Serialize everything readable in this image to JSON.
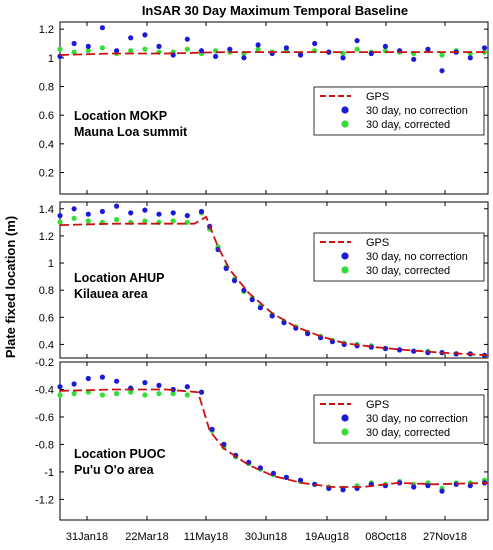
{
  "title": "InSAR 30 Day Maximum Temporal Baseline",
  "ylabel": "Plate fixed location (m)",
  "x_tick_labels": [
    "31Jan18",
    "22Mar18",
    "11May18",
    "30Jun18",
    "19Aug18",
    "08Oct18",
    "27Nov18"
  ],
  "legend": {
    "gps": "GPS",
    "no_correction": "30 day, no correction",
    "corrected": "30 day, corrected"
  },
  "colors": {
    "gps": "#cc1111",
    "no_correction": "#1a1ad8",
    "corrected": "#33dd33"
  },
  "panels": [
    {
      "location": "Location MOKP",
      "area": "Mauna Loa summit",
      "y_ticks": [
        "1.2",
        "1",
        "0.8",
        "0.6",
        "0.4",
        "0.2"
      ]
    },
    {
      "location": "Location AHUP",
      "area": "Kilauea area",
      "y_ticks": [
        "1.4",
        "1.2",
        "1",
        "0.8",
        "0.6",
        "0.4"
      ]
    },
    {
      "location": "Location PUOC",
      "area": "Pu'u O'o area",
      "y_ticks": [
        "-0.2",
        "-0.4",
        "-0.6",
        "-0.8",
        "-1",
        "-1.2"
      ]
    }
  ],
  "chart_data": [
    {
      "type": "scatter",
      "title": "InSAR 30 Day Maximum Temporal Baseline",
      "xlabel": "",
      "ylabel": "Plate fixed location (m)",
      "x_range": [
        "2018-01-01",
        "2018-12-30"
      ],
      "ylim": [
        0.05,
        1.25
      ],
      "legend_position": "right",
      "grid": false,
      "series": [
        {
          "name": "GPS",
          "style": "dashed-line",
          "x": [
            "2018-01-01",
            "2018-02-15",
            "2018-04-01",
            "2018-05-20",
            "2018-07-10",
            "2018-08-30",
            "2018-10-20",
            "2018-12-30"
          ],
          "y": [
            1.02,
            1.03,
            1.03,
            1.04,
            1.04,
            1.04,
            1.04,
            1.04
          ]
        },
        {
          "name": "30 day, no correction",
          "x": [
            "2018-01-01",
            "2018-01-13",
            "2018-01-25",
            "2018-02-06",
            "2018-02-18",
            "2018-03-02",
            "2018-03-14",
            "2018-03-26",
            "2018-04-07",
            "2018-04-19",
            "2018-05-01",
            "2018-05-13",
            "2018-05-25",
            "2018-06-06",
            "2018-06-18",
            "2018-06-30",
            "2018-07-12",
            "2018-07-24",
            "2018-08-05",
            "2018-08-17",
            "2018-08-29",
            "2018-09-10",
            "2018-09-22",
            "2018-10-04",
            "2018-10-16",
            "2018-10-28",
            "2018-11-09",
            "2018-11-21",
            "2018-12-03",
            "2018-12-15",
            "2018-12-27"
          ],
          "y": [
            1.01,
            1.1,
            1.08,
            1.21,
            1.05,
            1.14,
            1.16,
            1.08,
            1.02,
            1.13,
            1.05,
            1.01,
            1.06,
            1.0,
            1.09,
            1.03,
            1.07,
            1.02,
            1.1,
            1.04,
            1.0,
            1.12,
            1.03,
            1.08,
            1.05,
            0.99,
            1.06,
            0.91,
            1.04,
            1.0,
            1.07
          ]
        },
        {
          "name": "30 day, corrected",
          "x": [
            "2018-01-01",
            "2018-01-13",
            "2018-01-25",
            "2018-02-06",
            "2018-02-18",
            "2018-03-02",
            "2018-03-14",
            "2018-03-26",
            "2018-04-07",
            "2018-04-19",
            "2018-05-01",
            "2018-05-13",
            "2018-05-25",
            "2018-06-06",
            "2018-06-18",
            "2018-06-30",
            "2018-07-12",
            "2018-07-24",
            "2018-08-05",
            "2018-08-17",
            "2018-08-29",
            "2018-09-10",
            "2018-09-22",
            "2018-10-04",
            "2018-10-16",
            "2018-10-28",
            "2018-11-09",
            "2018-11-21",
            "2018-12-03",
            "2018-12-15",
            "2018-12-27"
          ],
          "y": [
            1.06,
            1.04,
            1.05,
            1.07,
            1.03,
            1.05,
            1.06,
            1.04,
            1.04,
            1.06,
            1.03,
            1.05,
            1.04,
            1.03,
            1.06,
            1.04,
            1.05,
            1.03,
            1.05,
            1.04,
            1.03,
            1.06,
            1.04,
            1.05,
            1.04,
            1.03,
            1.05,
            1.02,
            1.05,
            1.03,
            1.04
          ]
        }
      ]
    },
    {
      "type": "scatter",
      "title": "",
      "xlabel": "",
      "ylabel": "Plate fixed location (m)",
      "x_range": [
        "2018-01-01",
        "2018-12-30"
      ],
      "ylim": [
        0.3,
        1.45
      ],
      "legend_position": "right",
      "grid": false,
      "series": [
        {
          "name": "GPS",
          "style": "dashed-line",
          "x": [
            "2018-01-01",
            "2018-02-15",
            "2018-04-01",
            "2018-04-25",
            "2018-05-05",
            "2018-05-15",
            "2018-05-25",
            "2018-06-10",
            "2018-06-30",
            "2018-07-20",
            "2018-08-10",
            "2018-08-30",
            "2018-09-25",
            "2018-10-20",
            "2018-11-20",
            "2018-12-30"
          ],
          "y": [
            1.28,
            1.29,
            1.29,
            1.29,
            1.34,
            1.12,
            0.95,
            0.78,
            0.63,
            0.53,
            0.46,
            0.41,
            0.38,
            0.36,
            0.34,
            0.32
          ]
        },
        {
          "name": "30 day, no correction",
          "x": [
            "2018-01-01",
            "2018-01-13",
            "2018-01-25",
            "2018-02-06",
            "2018-02-18",
            "2018-03-02",
            "2018-03-14",
            "2018-03-26",
            "2018-04-07",
            "2018-04-19",
            "2018-05-01",
            "2018-05-08",
            "2018-05-15",
            "2018-05-22",
            "2018-05-29",
            "2018-06-06",
            "2018-06-13",
            "2018-06-20",
            "2018-06-30",
            "2018-07-10",
            "2018-07-20",
            "2018-07-30",
            "2018-08-10",
            "2018-08-20",
            "2018-08-30",
            "2018-09-10",
            "2018-09-22",
            "2018-10-04",
            "2018-10-16",
            "2018-10-28",
            "2018-11-09",
            "2018-11-21",
            "2018-12-03",
            "2018-12-15",
            "2018-12-27"
          ],
          "y": [
            1.35,
            1.4,
            1.36,
            1.38,
            1.42,
            1.37,
            1.39,
            1.36,
            1.37,
            1.35,
            1.38,
            1.27,
            1.1,
            0.96,
            0.87,
            0.8,
            0.73,
            0.67,
            0.61,
            0.56,
            0.52,
            0.48,
            0.45,
            0.42,
            0.4,
            0.39,
            0.38,
            0.37,
            0.36,
            0.35,
            0.34,
            0.34,
            0.33,
            0.33,
            0.32
          ]
        },
        {
          "name": "30 day, corrected",
          "x": [
            "2018-01-01",
            "2018-01-13",
            "2018-01-25",
            "2018-02-06",
            "2018-02-18",
            "2018-03-02",
            "2018-03-14",
            "2018-03-26",
            "2018-04-07",
            "2018-04-19",
            "2018-05-01",
            "2018-05-08",
            "2018-05-15",
            "2018-05-22",
            "2018-05-29",
            "2018-06-06",
            "2018-06-13",
            "2018-06-20",
            "2018-06-30",
            "2018-07-10",
            "2018-07-20",
            "2018-07-30",
            "2018-08-10",
            "2018-08-20",
            "2018-08-30",
            "2018-09-10",
            "2018-09-22",
            "2018-10-04",
            "2018-10-16",
            "2018-10-28",
            "2018-11-09",
            "2018-11-21",
            "2018-12-03",
            "2018-12-15",
            "2018-12-27"
          ],
          "y": [
            1.3,
            1.33,
            1.31,
            1.3,
            1.32,
            1.3,
            1.31,
            1.3,
            1.31,
            1.3,
            1.37,
            1.25,
            1.12,
            0.97,
            0.88,
            0.79,
            0.74,
            0.68,
            0.62,
            0.57,
            0.53,
            0.49,
            0.46,
            0.43,
            0.41,
            0.4,
            0.39,
            0.37,
            0.36,
            0.35,
            0.35,
            0.34,
            0.33,
            0.33,
            0.32
          ]
        }
      ]
    },
    {
      "type": "scatter",
      "title": "",
      "xlabel": "",
      "ylabel": "Plate fixed location (m)",
      "x_range": [
        "2018-01-01",
        "2018-12-30"
      ],
      "ylim": [
        -1.35,
        -0.2
      ],
      "legend_position": "right",
      "grid": false,
      "series": [
        {
          "name": "GPS",
          "style": "dashed-line",
          "x": [
            "2018-01-01",
            "2018-02-15",
            "2018-04-01",
            "2018-04-28",
            "2018-05-08",
            "2018-05-20",
            "2018-06-10",
            "2018-07-01",
            "2018-07-25",
            "2018-08-20",
            "2018-09-15",
            "2018-10-15",
            "2018-11-15",
            "2018-12-30"
          ],
          "y": [
            -0.41,
            -0.4,
            -0.4,
            -0.42,
            -0.7,
            -0.83,
            -0.95,
            -1.03,
            -1.08,
            -1.11,
            -1.11,
            -1.08,
            -1.09,
            -1.08
          ]
        },
        {
          "name": "30 day, no correction",
          "x": [
            "2018-01-01",
            "2018-01-13",
            "2018-01-25",
            "2018-02-06",
            "2018-02-18",
            "2018-03-02",
            "2018-03-14",
            "2018-03-26",
            "2018-04-07",
            "2018-04-19",
            "2018-05-01",
            "2018-05-10",
            "2018-05-20",
            "2018-05-30",
            "2018-06-10",
            "2018-06-20",
            "2018-07-01",
            "2018-07-12",
            "2018-07-24",
            "2018-08-05",
            "2018-08-17",
            "2018-08-29",
            "2018-09-10",
            "2018-09-22",
            "2018-10-04",
            "2018-10-16",
            "2018-10-28",
            "2018-11-09",
            "2018-11-21",
            "2018-12-03",
            "2018-12-15",
            "2018-12-27"
          ],
          "y": [
            -0.38,
            -0.36,
            -0.32,
            -0.31,
            -0.34,
            -0.39,
            -0.35,
            -0.37,
            -0.4,
            -0.38,
            -0.42,
            -0.69,
            -0.8,
            -0.88,
            -0.93,
            -0.97,
            -1.01,
            -1.04,
            -1.06,
            -1.09,
            -1.12,
            -1.13,
            -1.12,
            -1.09,
            -1.1,
            -1.08,
            -1.11,
            -1.1,
            -1.14,
            -1.09,
            -1.1,
            -1.08
          ]
        },
        {
          "name": "30 day, corrected",
          "x": [
            "2018-01-01",
            "2018-01-13",
            "2018-01-25",
            "2018-02-06",
            "2018-02-18",
            "2018-03-02",
            "2018-03-14",
            "2018-03-26",
            "2018-04-07",
            "2018-04-19",
            "2018-05-01",
            "2018-05-10",
            "2018-05-20",
            "2018-05-30",
            "2018-06-10",
            "2018-06-20",
            "2018-07-01",
            "2018-07-12",
            "2018-07-24",
            "2018-08-05",
            "2018-08-17",
            "2018-08-29",
            "2018-09-10",
            "2018-09-22",
            "2018-10-04",
            "2018-10-16",
            "2018-10-28",
            "2018-11-09",
            "2018-11-21",
            "2018-12-03",
            "2018-12-15",
            "2018-12-27"
          ],
          "y": [
            -0.44,
            -0.43,
            -0.42,
            -0.44,
            -0.43,
            -0.42,
            -0.44,
            -0.43,
            -0.43,
            -0.44,
            -0.42,
            -0.7,
            -0.82,
            -0.89,
            -0.94,
            -0.98,
            -1.02,
            -1.04,
            -1.07,
            -1.09,
            -1.11,
            -1.12,
            -1.1,
            -1.08,
            -1.09,
            -1.07,
            -1.09,
            -1.08,
            -1.12,
            -1.08,
            -1.08,
            -1.06
          ]
        }
      ]
    }
  ]
}
